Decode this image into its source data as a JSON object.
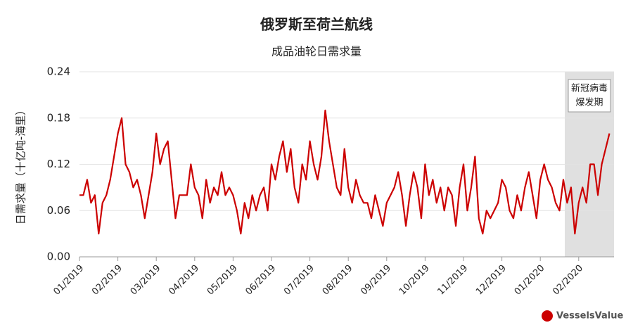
{
  "chart_data": {
    "type": "line",
    "title": "俄罗斯至荷兰航线",
    "subtitle": "成品油轮日需求量",
    "y_label": "日需求量（十亿吨-海里）",
    "annotation": [
      "新冠病毒",
      "爆发期"
    ],
    "brand": "VesselsValue",
    "categories": [
      "01/2019",
      null,
      null,
      null,
      null,
      null,
      null,
      null,
      null,
      null,
      "02/2019",
      null,
      null,
      null,
      null,
      null,
      null,
      null,
      null,
      null,
      "03/2019",
      null,
      null,
      null,
      null,
      null,
      null,
      null,
      null,
      null,
      "04/2019",
      null,
      null,
      null,
      null,
      null,
      null,
      null,
      null,
      null,
      "05/2019",
      null,
      null,
      null,
      null,
      null,
      null,
      null,
      null,
      null,
      "06/2019",
      null,
      null,
      null,
      null,
      null,
      null,
      null,
      null,
      null,
      "07/2019",
      null,
      null,
      null,
      null,
      null,
      null,
      null,
      null,
      null,
      "08/2019",
      null,
      null,
      null,
      null,
      null,
      null,
      null,
      null,
      null,
      "09/2019",
      null,
      null,
      null,
      null,
      null,
      null,
      null,
      null,
      null,
      "10/2019",
      null,
      null,
      null,
      null,
      null,
      null,
      null,
      null,
      null,
      "11/2019",
      null,
      null,
      null,
      null,
      null,
      null,
      null,
      null,
      null,
      "12/2019",
      null,
      null,
      null,
      null,
      null,
      null,
      null,
      null,
      null,
      "01/2020",
      null,
      null,
      null,
      null,
      null,
      null,
      null,
      null,
      null,
      "02/2020",
      null,
      null,
      null,
      null,
      null,
      null,
      null,
      null
    ],
    "series": [
      {
        "color": "#cc0000",
        "values": [
          0.08,
          0.08,
          0.1,
          0.07,
          0.08,
          0.03,
          0.07,
          0.08,
          0.1,
          0.13,
          0.16,
          0.18,
          0.12,
          0.11,
          0.09,
          0.1,
          0.08,
          0.05,
          0.08,
          0.11,
          0.16,
          0.12,
          0.14,
          0.15,
          0.1,
          0.05,
          0.08,
          0.08,
          0.08,
          0.12,
          0.09,
          0.08,
          0.05,
          0.1,
          0.07,
          0.09,
          0.08,
          0.11,
          0.08,
          0.09,
          0.08,
          0.06,
          0.03,
          0.07,
          0.05,
          0.08,
          0.06,
          0.08,
          0.09,
          0.06,
          0.12,
          0.1,
          0.13,
          0.15,
          0.11,
          0.14,
          0.09,
          0.07,
          0.12,
          0.1,
          0.15,
          0.12,
          0.1,
          0.13,
          0.19,
          0.15,
          0.12,
          0.09,
          0.08,
          0.14,
          0.09,
          0.07,
          0.1,
          0.08,
          0.07,
          0.07,
          0.05,
          0.08,
          0.06,
          0.04,
          0.07,
          0.08,
          0.09,
          0.11,
          0.08,
          0.04,
          0.08,
          0.11,
          0.09,
          0.05,
          0.12,
          0.08,
          0.1,
          0.07,
          0.09,
          0.06,
          0.09,
          0.08,
          0.04,
          0.09,
          0.12,
          0.06,
          0.09,
          0.13,
          0.05,
          0.03,
          0.06,
          0.05,
          0.06,
          0.07,
          0.1,
          0.09,
          0.06,
          0.05,
          0.08,
          0.06,
          0.09,
          0.11,
          0.08,
          0.05,
          0.1,
          0.12,
          0.1,
          0.09,
          0.07,
          0.06,
          0.1,
          0.07,
          0.09,
          0.03,
          0.07,
          0.09,
          0.07,
          0.12,
          0.12,
          0.08,
          0.12,
          0.14,
          0.16
        ]
      }
    ],
    "ylim": [
      0,
      0.24
    ],
    "yticks": [
      {
        "value": 0,
        "label": "0.00"
      },
      0.06,
      0.12,
      0.18,
      0.24
    ],
    "grid": true
  }
}
